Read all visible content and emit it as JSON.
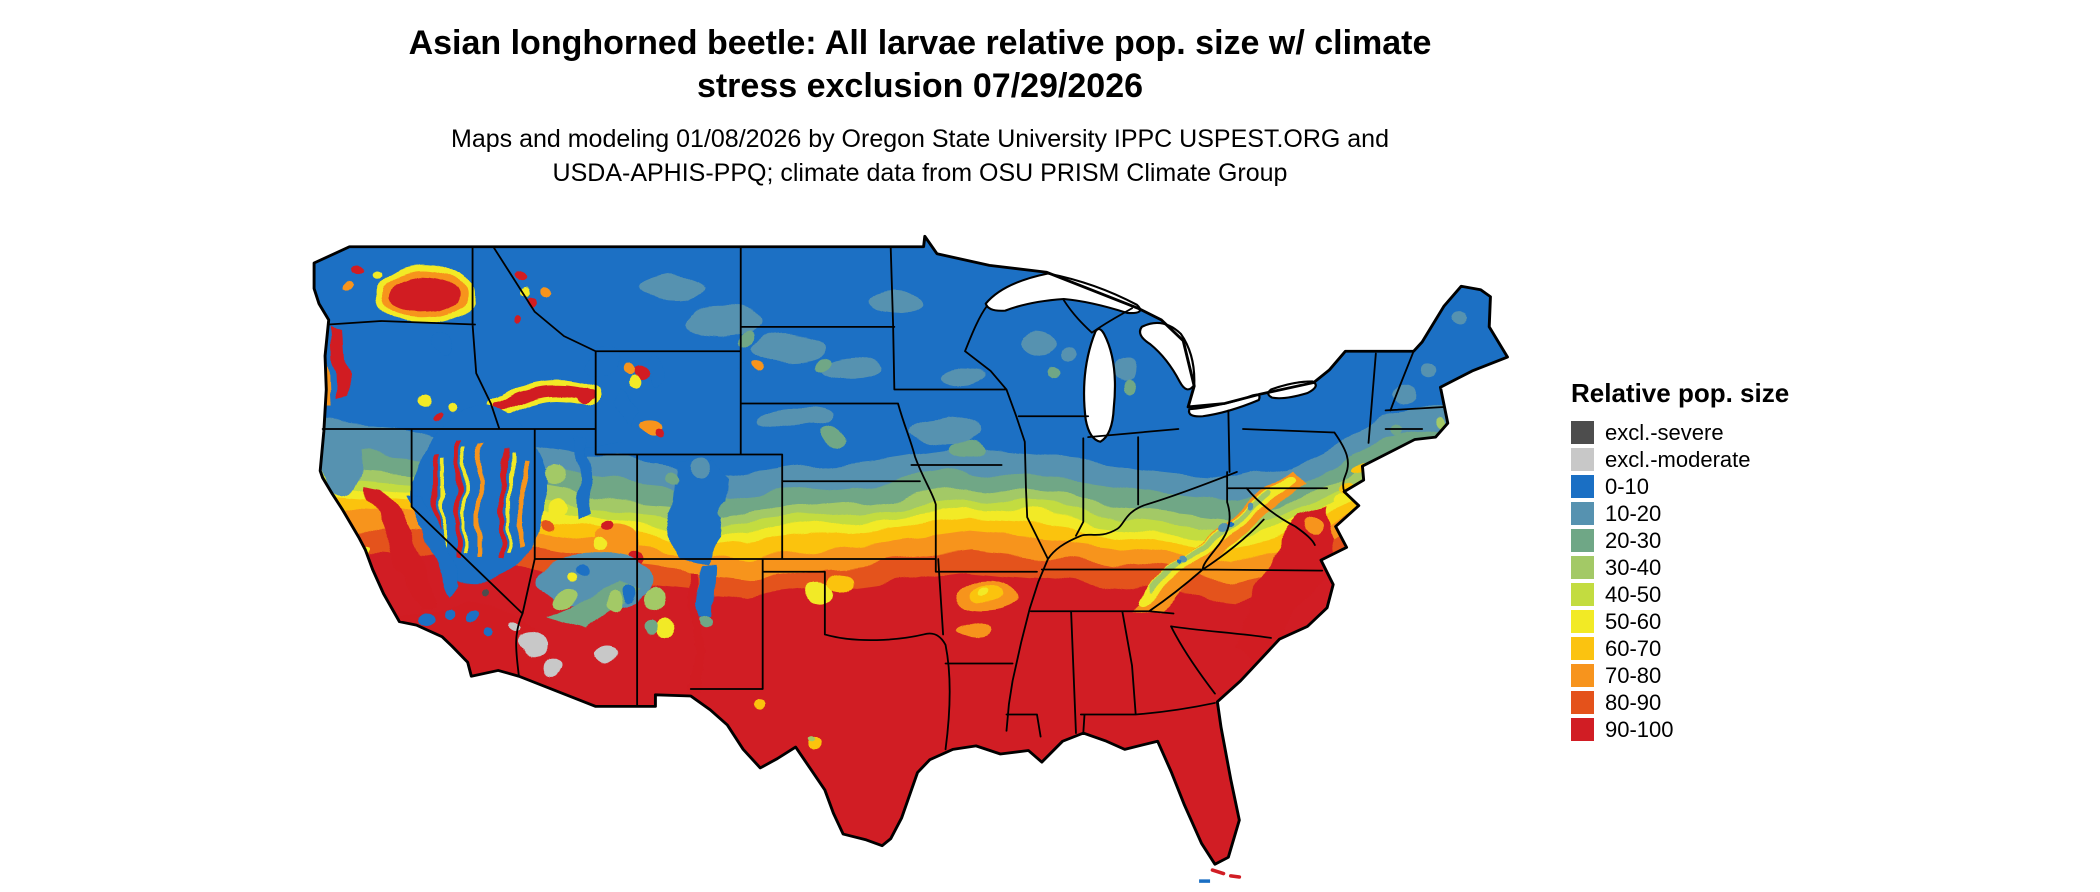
{
  "header": {
    "title_line1": "Asian longhorned beetle: All larvae relative pop. size w/ climate",
    "title_line2": "stress exclusion 07/29/2026",
    "subtitle_line1": "Maps and modeling 01/08/2026 by Oregon State University IPPC USPEST.ORG and",
    "subtitle_line2": "USDA-APHIS-PPQ; climate data from OSU PRISM Climate Group"
  },
  "legend": {
    "title": "Relative pop. size",
    "entries": [
      {
        "label": "excl.-severe",
        "color": "#4d4d4d"
      },
      {
        "label": "excl.-moderate",
        "color": "#c8c8c8"
      },
      {
        "label": "0-10",
        "color": "#1a6fc4"
      },
      {
        "label": "10-20",
        "color": "#5692b0"
      },
      {
        "label": "20-30",
        "color": "#6fa786"
      },
      {
        "label": "30-40",
        "color": "#a3c966"
      },
      {
        "label": "40-50",
        "color": "#c3dc40"
      },
      {
        "label": "50-60",
        "color": "#f2ea25"
      },
      {
        "label": "60-70",
        "color": "#fbc310"
      },
      {
        "label": "70-80",
        "color": "#f7941d"
      },
      {
        "label": "80-90",
        "color": "#e4521b"
      },
      {
        "label": "90-100",
        "color": "#d11d24"
      }
    ]
  }
}
